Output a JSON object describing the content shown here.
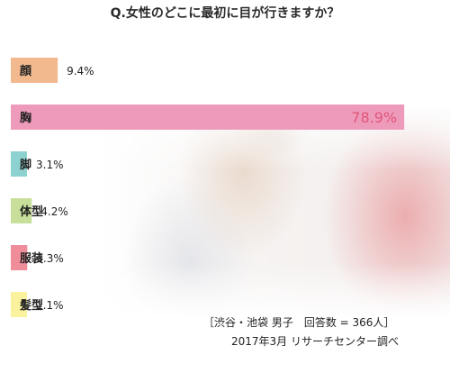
{
  "chart_data": {
    "type": "bar",
    "orientation": "horizontal",
    "title": "Q.女性のどこに最初に目が行きますか？",
    "categories": [
      "顔",
      "胸",
      "脚",
      "体型",
      "服装",
      "髪型"
    ],
    "values": [
      9.4,
      78.9,
      3.1,
      4.2,
      3.3,
      1.1
    ],
    "value_labels": [
      "9.4%",
      "78.9%",
      "3.1%",
      "4.2%",
      "3.3%",
      "1.1%"
    ],
    "colors": [
      "#f2b98f",
      "#ee9bbb",
      "#8dd2d0",
      "#c7df9a",
      "#ef8e9a",
      "#faf29c"
    ],
    "highlight_label_color": "#e0557a",
    "xlim": [
      0,
      100
    ],
    "grid": false,
    "legend": "none"
  },
  "footnote": {
    "line1": "［渋谷・池袋 男子　回答数 = 366人］",
    "line2": "2017年3月 リサーチセンター調べ"
  },
  "background": "photo of a woman wearing a pink t-shirt"
}
